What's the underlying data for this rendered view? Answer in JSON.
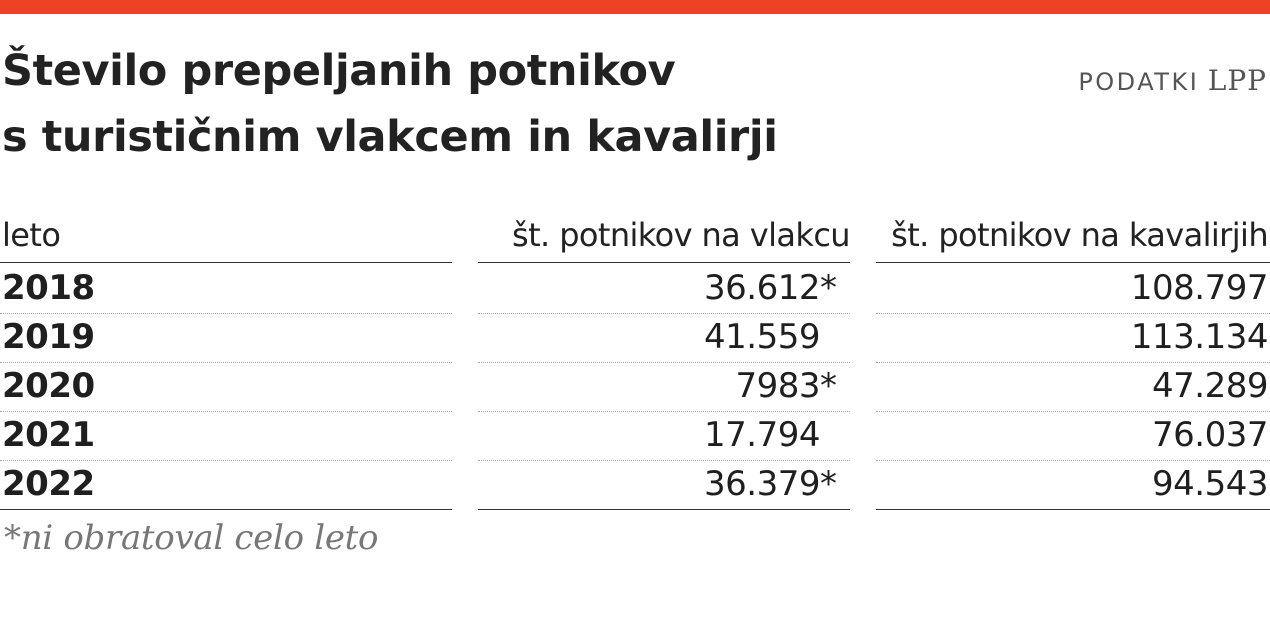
{
  "chart_data": {
    "type": "table",
    "title_lines": [
      "Število prepeljanih potnikov",
      "s turističnim vlakcem in kavalirji"
    ],
    "source": {
      "label": "PODATKI",
      "org": "LPP"
    },
    "columns": [
      "leto",
      "št. potnikov na vlakcu",
      "št. potnikov na kavalirjih"
    ],
    "rows": [
      {
        "year": "2018",
        "train": "36.612",
        "train_mark": "*",
        "kavalir": "108.797"
      },
      {
        "year": "2019",
        "train": "41.559",
        "train_mark": "",
        "kavalir": "113.134"
      },
      {
        "year": "2020",
        "train": "7983",
        "train_mark": "*",
        "kavalir": "47.289"
      },
      {
        "year": "2021",
        "train": "17.794",
        "train_mark": "",
        "kavalir": "76.037"
      },
      {
        "year": "2022",
        "train": "36.379",
        "train_mark": "*",
        "kavalir": "94.543"
      }
    ],
    "footnote": "*ni obratoval celo leto"
  },
  "colors": {
    "accent": "#ef4123",
    "text": "#1f1f1f",
    "muted": "#777777",
    "rule": "#333333",
    "dotted": "#a8a8a8"
  }
}
